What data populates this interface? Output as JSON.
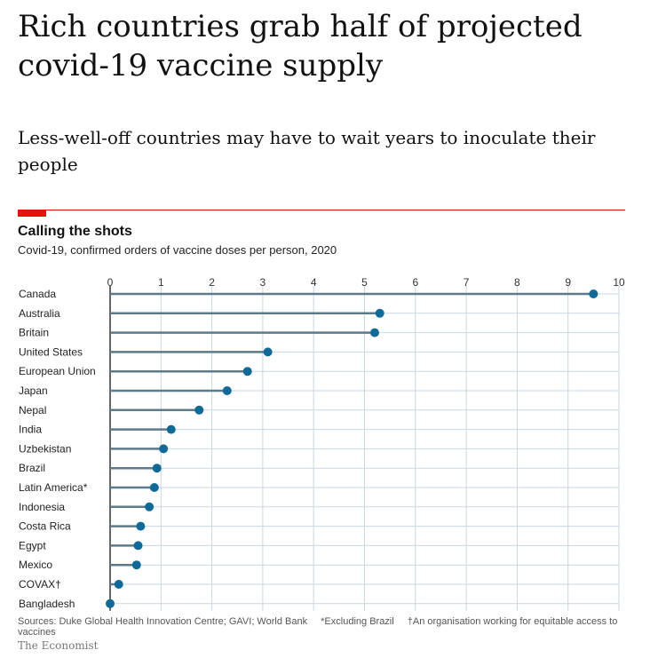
{
  "headline": "Rich countries grab half of projected covid-19 vaccine supply",
  "standfirst": "Less-well-off countries may have to wait years to inoculate their people",
  "chart_data": {
    "type": "lollipop",
    "title": "Calling the shots",
    "subtitle": "Covid-19, confirmed orders of vaccine doses per person, 2020",
    "xlim": [
      0,
      10
    ],
    "ticks": [
      0,
      1,
      2,
      3,
      4,
      5,
      6,
      7,
      8,
      9,
      10
    ],
    "grid": true,
    "categories": [
      "Canada",
      "Australia",
      "Britain",
      "United States",
      "European Union",
      "Japan",
      "Nepal",
      "India",
      "Uzbekistan",
      "Brazil",
      "Latin America*",
      "Indonesia",
      "Costa Rica",
      "Egypt",
      "Mexico",
      "COVAX†",
      "Bangladesh"
    ],
    "values": [
      9.5,
      5.3,
      5.2,
      3.1,
      2.7,
      2.3,
      1.75,
      1.2,
      1.05,
      0.92,
      0.87,
      0.77,
      0.6,
      0.55,
      0.52,
      0.17,
      0
    ],
    "colors": {
      "dot": "#0f6a99",
      "stem": "#5b7a8a",
      "grid": "#c9d7e0",
      "accent": "#e3120b"
    }
  },
  "footer": {
    "sources": "Sources: Duke Global Health Innovation Centre; GAVI; World Bank",
    "note1": "*Excluding Brazil",
    "note2": "†An organisation working for equitable access to vaccines"
  },
  "brand": "The Economist"
}
